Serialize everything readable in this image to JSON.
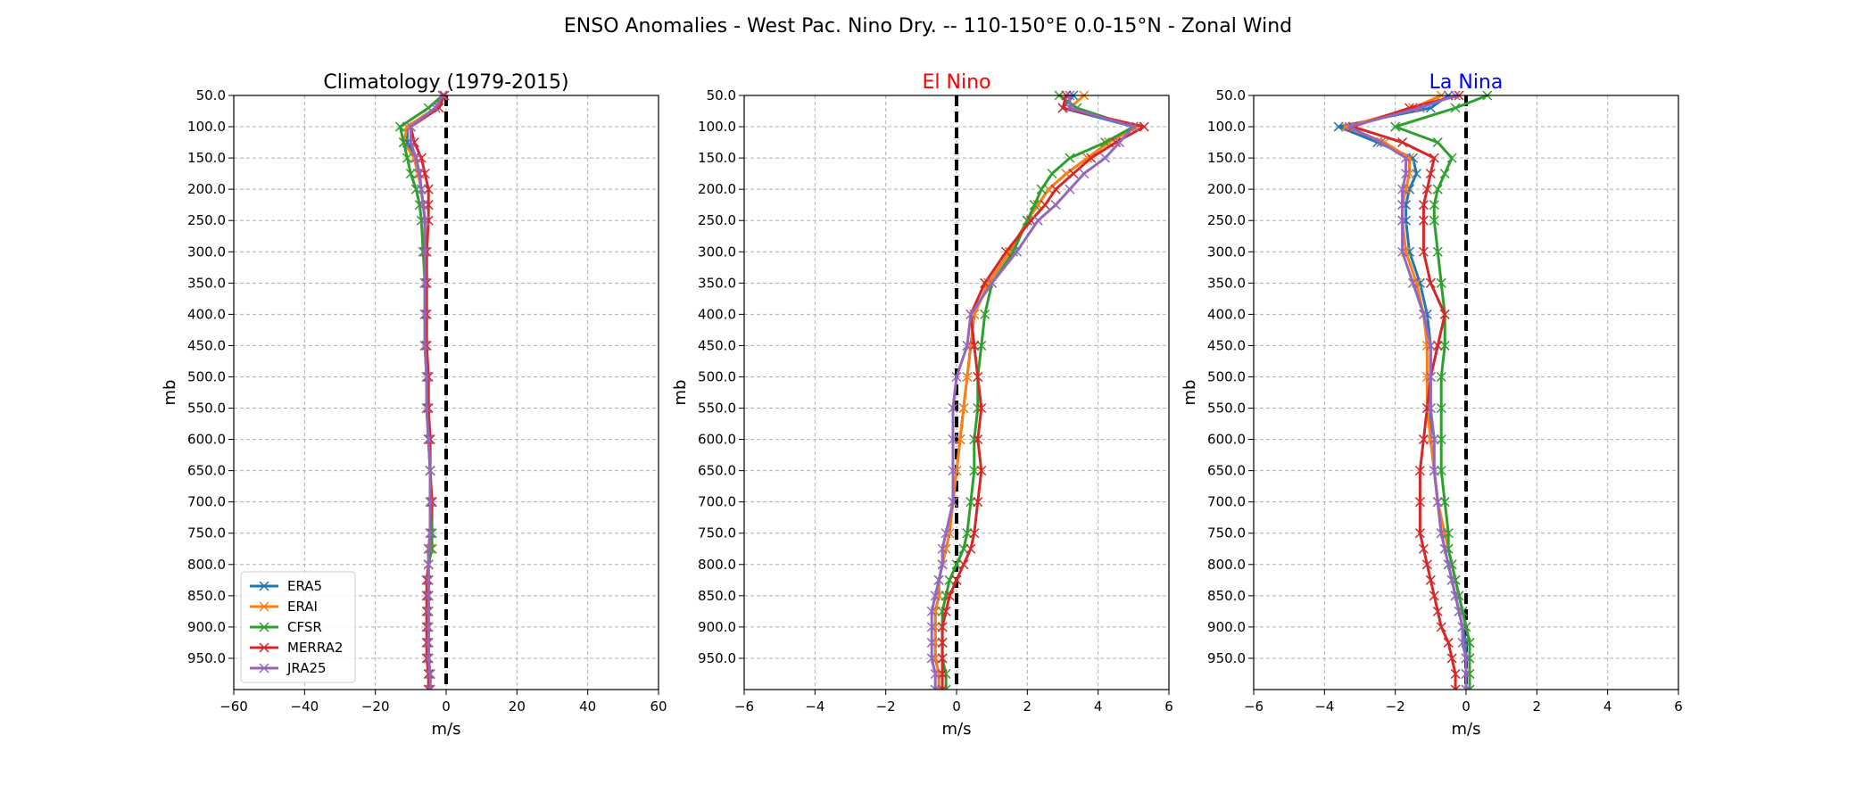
{
  "suptitle": "ENSO Anomalies - West Pac. Nino Dry. -- 110-150°E 0.0-15°N - Zonal Wind",
  "chart_data": [
    {
      "type": "line",
      "title": "Climatology (1979-2015)",
      "title_color": "#000000",
      "xlabel": "m/s",
      "ylabel": "mb",
      "xlim": [
        -60,
        60
      ],
      "xticks": [
        -60,
        -40,
        -20,
        0,
        20,
        40,
        60
      ],
      "ylim": [
        1000,
        50
      ],
      "yticks": [
        50,
        100,
        150,
        200,
        250,
        300,
        350,
        400,
        450,
        500,
        550,
        600,
        650,
        700,
        750,
        800,
        850,
        900,
        950
      ],
      "grid": true,
      "zero_line": true,
      "legend_position": "lower-left",
      "levels": [
        50,
        70,
        100,
        125,
        150,
        175,
        200,
        225,
        250,
        300,
        350,
        400,
        450,
        500,
        550,
        600,
        650,
        700,
        750,
        775,
        800,
        825,
        850,
        875,
        900,
        925,
        950,
        975,
        1000
      ],
      "series": [
        {
          "name": "ERA5",
          "color": "#1f77b4",
          "values": [
            -1,
            -3,
            -11,
            -11,
            -9,
            -8,
            -7,
            -6.5,
            -6,
            -6,
            -6,
            -6,
            -6,
            -5.5,
            -5.5,
            -5,
            -4.5,
            -4.5,
            -4.5,
            -4.5,
            -5,
            -5,
            -5,
            -5,
            -5,
            -5,
            -5,
            -4.5,
            -4.5
          ]
        },
        {
          "name": "ERAI",
          "color": "#ff7f0e",
          "values": [
            -1,
            -3,
            -11,
            -12,
            -9,
            -8,
            -7,
            -6.5,
            -6,
            -6,
            -6,
            -6,
            -6,
            -5.5,
            -5.5,
            -5,
            -4.5,
            -4.5,
            -4.5,
            -4.5,
            -5,
            -5,
            -5,
            -5,
            -5,
            -5,
            -5,
            -4.5,
            -4.5
          ]
        },
        {
          "name": "CFSR",
          "color": "#2ca02c",
          "values": [
            -1,
            -5,
            -13,
            -12,
            -11,
            -10,
            -8.5,
            -7.5,
            -7,
            -6.5,
            -6,
            -6,
            -6,
            -5.5,
            -5.5,
            -5,
            -4.5,
            -4,
            -4,
            -4,
            -5,
            -5,
            -5,
            -5,
            -5,
            -5,
            -5,
            -4.5,
            -4.5
          ]
        },
        {
          "name": "MERRA2",
          "color": "#d62728",
          "values": [
            -0.5,
            -2,
            -10,
            -9,
            -7,
            -6,
            -5,
            -5,
            -5,
            -5.5,
            -5.5,
            -5.5,
            -5.5,
            -5,
            -5,
            -4.5,
            -4.5,
            -4,
            -4.5,
            -5,
            -5,
            -5.5,
            -5.5,
            -5.5,
            -5.5,
            -5.5,
            -5.5,
            -5,
            -5
          ]
        },
        {
          "name": "JRA25",
          "color": "#9467bd",
          "values": [
            -1,
            -3,
            -10,
            -10,
            -8.5,
            -7.5,
            -7,
            -6.5,
            -6,
            -6,
            -6,
            -6,
            -6,
            -5.5,
            -5.5,
            -5,
            -4.5,
            -4.5,
            -4.5,
            -5,
            -5,
            -5,
            -5,
            -5,
            -5,
            -5,
            -5,
            -4.5,
            -4.5
          ]
        }
      ]
    },
    {
      "type": "line",
      "title": "El Nino",
      "title_color": "#ff0000",
      "xlabel": "m/s",
      "ylabel": "mb",
      "xlim": [
        -6,
        6
      ],
      "xticks": [
        -6,
        -4,
        -2,
        0,
        2,
        4,
        6
      ],
      "ylim": [
        1000,
        50
      ],
      "yticks": [
        50,
        100,
        150,
        200,
        250,
        300,
        350,
        400,
        450,
        500,
        550,
        600,
        650,
        700,
        750,
        800,
        850,
        900,
        950
      ],
      "grid": true,
      "zero_line": true,
      "levels": [
        50,
        70,
        100,
        125,
        150,
        175,
        200,
        225,
        250,
        300,
        350,
        400,
        450,
        500,
        550,
        600,
        650,
        700,
        750,
        775,
        800,
        825,
        850,
        875,
        900,
        925,
        950,
        975,
        1000
      ],
      "series": [
        {
          "name": "ERA5",
          "color": "#1f77b4",
          "values": [
            3.3,
            3.0,
            5.0,
            4.3,
            3.7,
            3.1,
            2.6,
            2.3,
            2.0,
            1.5,
            0.9,
            0.5,
            0.4,
            0.3,
            0.2,
            0.1,
            0.0,
            -0.1,
            -0.2,
            -0.3,
            -0.4,
            -0.5,
            -0.5,
            -0.6,
            -0.6,
            -0.6,
            -0.6,
            -0.5,
            -0.5
          ]
        },
        {
          "name": "ERAI",
          "color": "#ff7f0e",
          "values": [
            3.6,
            3.2,
            5.1,
            4.3,
            3.7,
            3.1,
            2.6,
            2.3,
            2.0,
            1.5,
            0.9,
            0.5,
            0.4,
            0.3,
            0.2,
            0.1,
            0.0,
            -0.1,
            -0.2,
            -0.3,
            -0.4,
            -0.5,
            -0.5,
            -0.6,
            -0.6,
            -0.6,
            -0.6,
            -0.5,
            -0.5
          ]
        },
        {
          "name": "CFSR",
          "color": "#2ca02c",
          "values": [
            2.9,
            3.4,
            5.0,
            4.2,
            3.2,
            2.7,
            2.4,
            2.2,
            2.0,
            1.6,
            1.0,
            0.8,
            0.7,
            0.6,
            0.6,
            0.5,
            0.5,
            0.4,
            0.3,
            0.2,
            0.0,
            -0.2,
            -0.3,
            -0.4,
            -0.4,
            -0.4,
            -0.4,
            -0.3,
            -0.3
          ]
        },
        {
          "name": "MERRA2",
          "color": "#d62728",
          "values": [
            3.1,
            3.0,
            5.3,
            4.5,
            3.8,
            3.3,
            2.8,
            2.5,
            2.1,
            1.4,
            0.8,
            0.4,
            0.5,
            0.6,
            0.7,
            0.6,
            0.7,
            0.6,
            0.5,
            0.4,
            0.2,
            0.0,
            -0.2,
            -0.3,
            -0.4,
            -0.4,
            -0.4,
            -0.4,
            -0.4
          ]
        },
        {
          "name": "JRA25",
          "color": "#9467bd",
          "values": [
            3.2,
            3.2,
            5.0,
            4.6,
            4.2,
            3.6,
            3.2,
            2.8,
            2.3,
            1.7,
            1.0,
            0.4,
            0.3,
            0.0,
            -0.1,
            -0.1,
            -0.1,
            -0.1,
            -0.3,
            -0.4,
            -0.4,
            -0.5,
            -0.6,
            -0.7,
            -0.7,
            -0.7,
            -0.7,
            -0.6,
            -0.6
          ]
        }
      ]
    },
    {
      "type": "line",
      "title": "La Nina",
      "title_color": "#0000ff",
      "xlabel": "m/s",
      "ylabel": "mb",
      "xlim": [
        -6,
        6
      ],
      "xticks": [
        -6,
        -4,
        -2,
        0,
        2,
        4,
        6
      ],
      "ylim": [
        1000,
        50
      ],
      "yticks": [
        50,
        100,
        150,
        200,
        250,
        300,
        350,
        400,
        450,
        500,
        550,
        600,
        650,
        700,
        750,
        800,
        850,
        900,
        950
      ],
      "grid": true,
      "zero_line": true,
      "levels": [
        50,
        70,
        100,
        125,
        150,
        175,
        200,
        225,
        250,
        300,
        350,
        400,
        450,
        500,
        550,
        600,
        650,
        700,
        750,
        775,
        800,
        825,
        850,
        875,
        900,
        925,
        950,
        975,
        1000
      ],
      "series": [
        {
          "name": "ERA5",
          "color": "#1f77b4",
          "values": [
            -0.5,
            -1.0,
            -3.6,
            -2.5,
            -1.5,
            -1.4,
            -1.6,
            -1.7,
            -1.7,
            -1.6,
            -1.3,
            -1.1,
            -1.0,
            -1.0,
            -1.0,
            -1.0,
            -0.9,
            -0.8,
            -0.7,
            -0.6,
            -0.5,
            -0.4,
            -0.3,
            -0.2,
            -0.1,
            0.0,
            0.0,
            0.0,
            0.0
          ]
        },
        {
          "name": "ERAI",
          "color": "#ff7f0e",
          "values": [
            -0.7,
            -1.5,
            -3.4,
            -2.3,
            -1.6,
            -1.6,
            -1.7,
            -1.8,
            -1.8,
            -1.7,
            -1.4,
            -1.2,
            -1.1,
            -1.1,
            -1.1,
            -1.0,
            -0.9,
            -0.8,
            -0.6,
            -0.5,
            -0.4,
            -0.3,
            -0.2,
            -0.1,
            0.0,
            0.1,
            0.1,
            0.1,
            0.1
          ]
        },
        {
          "name": "CFSR",
          "color": "#2ca02c",
          "values": [
            0.6,
            -0.3,
            -2.0,
            -0.8,
            -0.4,
            -0.6,
            -0.8,
            -0.9,
            -0.9,
            -0.8,
            -0.7,
            -0.6,
            -0.6,
            -0.7,
            -0.7,
            -0.7,
            -0.7,
            -0.6,
            -0.5,
            -0.5,
            -0.4,
            -0.3,
            -0.2,
            -0.1,
            0.0,
            0.1,
            0.1,
            0.1,
            0.1
          ]
        },
        {
          "name": "MERRA2",
          "color": "#d62728",
          "values": [
            -0.2,
            -1.6,
            -3.2,
            -1.8,
            -0.9,
            -1.0,
            -1.1,
            -1.2,
            -1.2,
            -1.2,
            -1.0,
            -0.6,
            -0.8,
            -1.0,
            -1.1,
            -1.2,
            -1.3,
            -1.3,
            -1.3,
            -1.2,
            -1.1,
            -1.0,
            -0.9,
            -0.8,
            -0.7,
            -0.5,
            -0.4,
            -0.3,
            -0.3
          ]
        },
        {
          "name": "JRA25",
          "color": "#9467bd",
          "values": [
            -0.3,
            -1.3,
            -3.3,
            -2.4,
            -1.7,
            -1.7,
            -1.8,
            -1.8,
            -1.8,
            -1.8,
            -1.5,
            -1.2,
            -1.0,
            -1.0,
            -1.0,
            -0.9,
            -0.9,
            -0.8,
            -0.7,
            -0.6,
            -0.5,
            -0.4,
            -0.3,
            -0.2,
            -0.1,
            -0.1,
            0.0,
            0.0,
            0.0
          ]
        }
      ]
    }
  ]
}
